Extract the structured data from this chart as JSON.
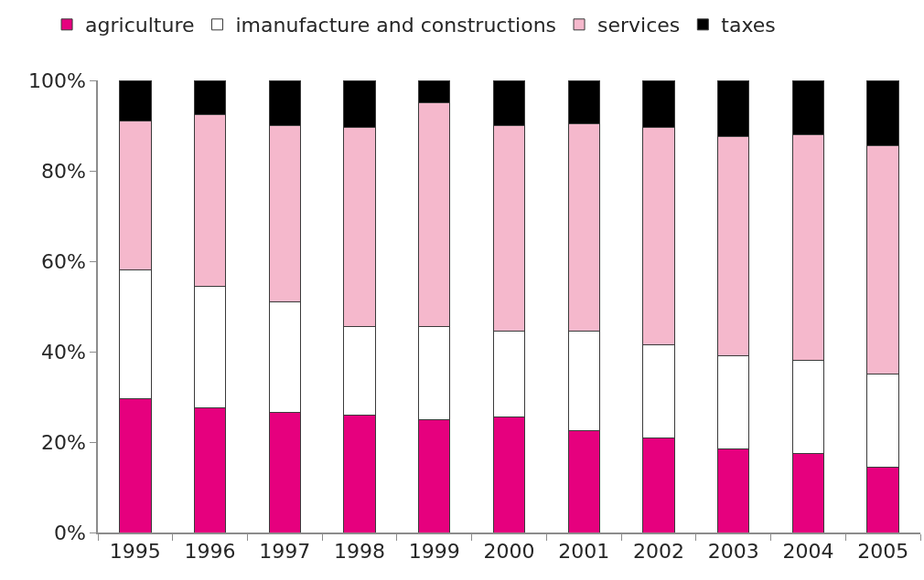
{
  "chart_data": {
    "type": "bar",
    "stacked": true,
    "categories": [
      "1995",
      "1996",
      "1997",
      "1998",
      "1999",
      "2000",
      "2001",
      "2002",
      "2003",
      "2004",
      "2005"
    ],
    "series": [
      {
        "name": "agriculture",
        "color": "#e6007e",
        "values": [
          29.5,
          27.5,
          26.5,
          26,
          25,
          25.5,
          22.5,
          21,
          18.5,
          17.5,
          14.5
        ]
      },
      {
        "name": "imanufacture and constructions",
        "color": "#ffffff",
        "values": [
          28.5,
          27,
          24.5,
          19.5,
          20.5,
          19,
          22,
          20.5,
          20.5,
          20.5,
          20.5
        ]
      },
      {
        "name": "services",
        "color": "#f5b8cc",
        "values": [
          33,
          38,
          39,
          44,
          49.5,
          45.5,
          46,
          48,
          48.5,
          50,
          50.5
        ]
      },
      {
        "name": "taxes",
        "color": "#000000",
        "values": [
          9,
          7.5,
          10,
          10.5,
          5,
          10,
          9.5,
          10.5,
          12.5,
          12,
          14.5
        ]
      }
    ],
    "ylim": [
      0,
      100
    ],
    "yticks": [
      {
        "value": 0,
        "label": "0%"
      },
      {
        "value": 20,
        "label": "20%"
      },
      {
        "value": 40,
        "label": "40%"
      },
      {
        "value": 60,
        "label": "60%"
      },
      {
        "value": 80,
        "label": "80%"
      },
      {
        "value": 100,
        "label": "100%"
      }
    ],
    "legend": "top"
  }
}
